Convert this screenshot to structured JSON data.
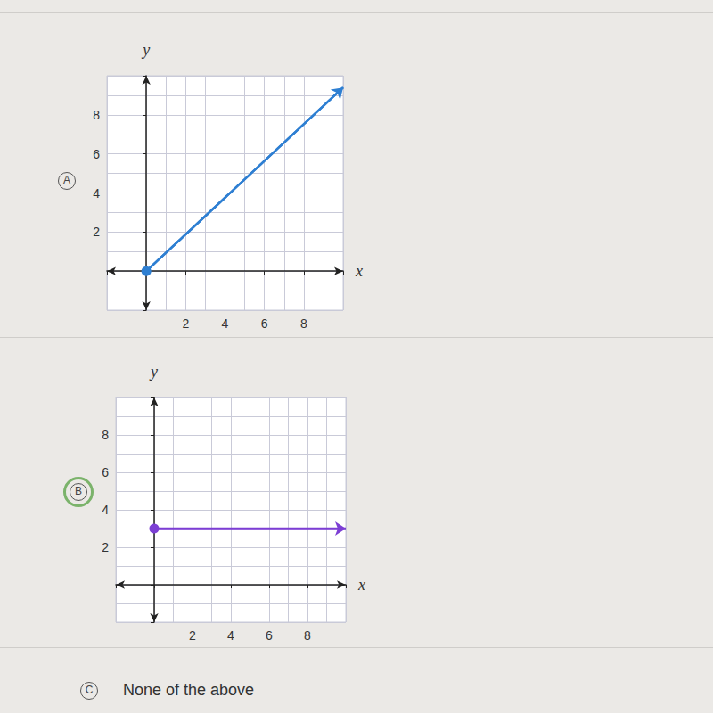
{
  "choices": [
    {
      "letter": "A"
    },
    {
      "letter": "B"
    },
    {
      "letter": "C",
      "text": "None of the above"
    }
  ],
  "selected": "B",
  "chart_data": [
    {
      "type": "line",
      "xlabel": "x",
      "ylabel": "y",
      "x": [
        0,
        10
      ],
      "values": [
        0,
        9.4
      ],
      "color": "#2e7fd2",
      "marker": "circle",
      "xlim": [
        -2,
        10
      ],
      "ylim": [
        -2,
        10
      ],
      "xticks": [
        2,
        4,
        6,
        8
      ],
      "yticks": [
        2,
        4,
        6,
        8
      ],
      "grid": true
    },
    {
      "type": "line",
      "xlabel": "x",
      "ylabel": "y",
      "x": [
        0,
        10
      ],
      "values": [
        3,
        3
      ],
      "color": "#7c3fd4",
      "marker": "circle",
      "xlim": [
        -2,
        10
      ],
      "ylim": [
        -2,
        10
      ],
      "xticks": [
        2,
        4,
        6,
        8
      ],
      "yticks": [
        2,
        4,
        6,
        8
      ],
      "grid": true
    }
  ]
}
